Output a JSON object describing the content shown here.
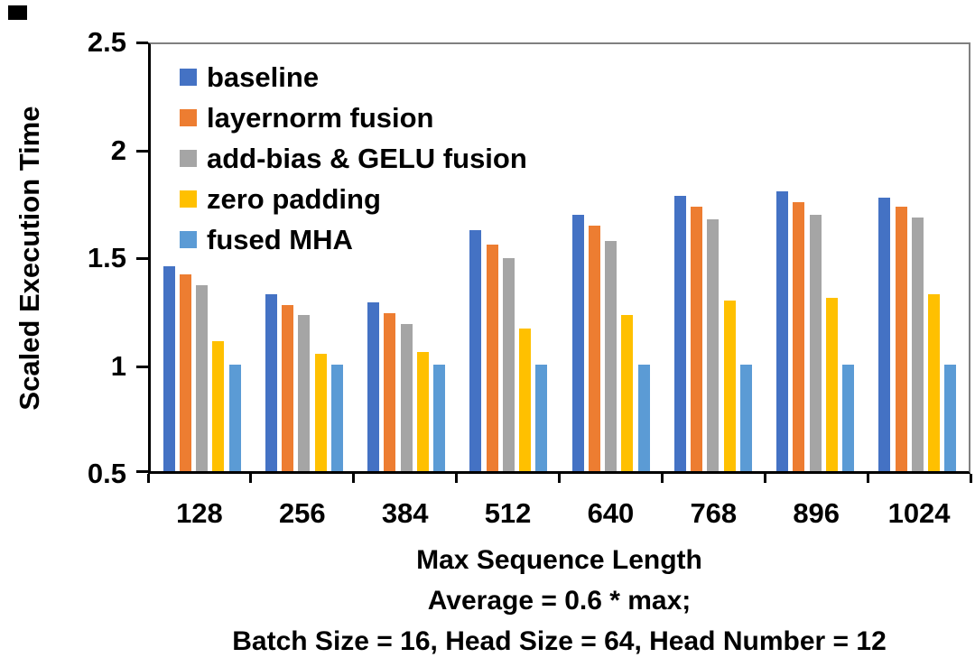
{
  "chart_data": {
    "type": "bar",
    "title": "",
    "categories": [
      "128",
      "256",
      "384",
      "512",
      "640",
      "768",
      "896",
      "1024"
    ],
    "series": [
      {
        "name": "baseline",
        "color": "#4472C4",
        "values": [
          1.46,
          1.33,
          1.29,
          1.63,
          1.7,
          1.79,
          1.81,
          1.78
        ]
      },
      {
        "name": "layernorm fusion",
        "color": "#ED7D31",
        "values": [
          1.42,
          1.28,
          1.24,
          1.56,
          1.65,
          1.74,
          1.76,
          1.74
        ]
      },
      {
        "name": "add-bias & GELU fusion",
        "color": "#A5A5A5",
        "values": [
          1.37,
          1.23,
          1.19,
          1.5,
          1.58,
          1.68,
          1.7,
          1.69
        ]
      },
      {
        "name": "zero padding",
        "color": "#FFC000",
        "values": [
          1.11,
          1.05,
          1.06,
          1.17,
          1.23,
          1.3,
          1.31,
          1.33
        ]
      },
      {
        "name": "fused MHA",
        "color": "#5B9BD5",
        "values": [
          1.0,
          1.0,
          1.0,
          1.0,
          1.0,
          1.0,
          1.0,
          1.0
        ]
      }
    ],
    "ylabel": "Scaled Execution Time",
    "xlabel": "Max Sequence Length",
    "subtitle_lines": [
      "Average = 0.6 * max;",
      "Batch Size = 16, Head Size = 64, Head Number = 12"
    ],
    "ylim": [
      0.5,
      2.5
    ],
    "yticks": [
      0.5,
      1,
      1.5,
      2,
      2.5
    ],
    "ytick_labels": [
      "0.5",
      "1",
      "1.5",
      "2",
      "2.5"
    ],
    "grid": false,
    "legend_position": "top-left-inside",
    "bar_baseline": 0.5
  },
  "colors": {
    "axis": "#000000",
    "plot_border": "#808080",
    "text": "#000000",
    "background": "#FFFFFF"
  }
}
